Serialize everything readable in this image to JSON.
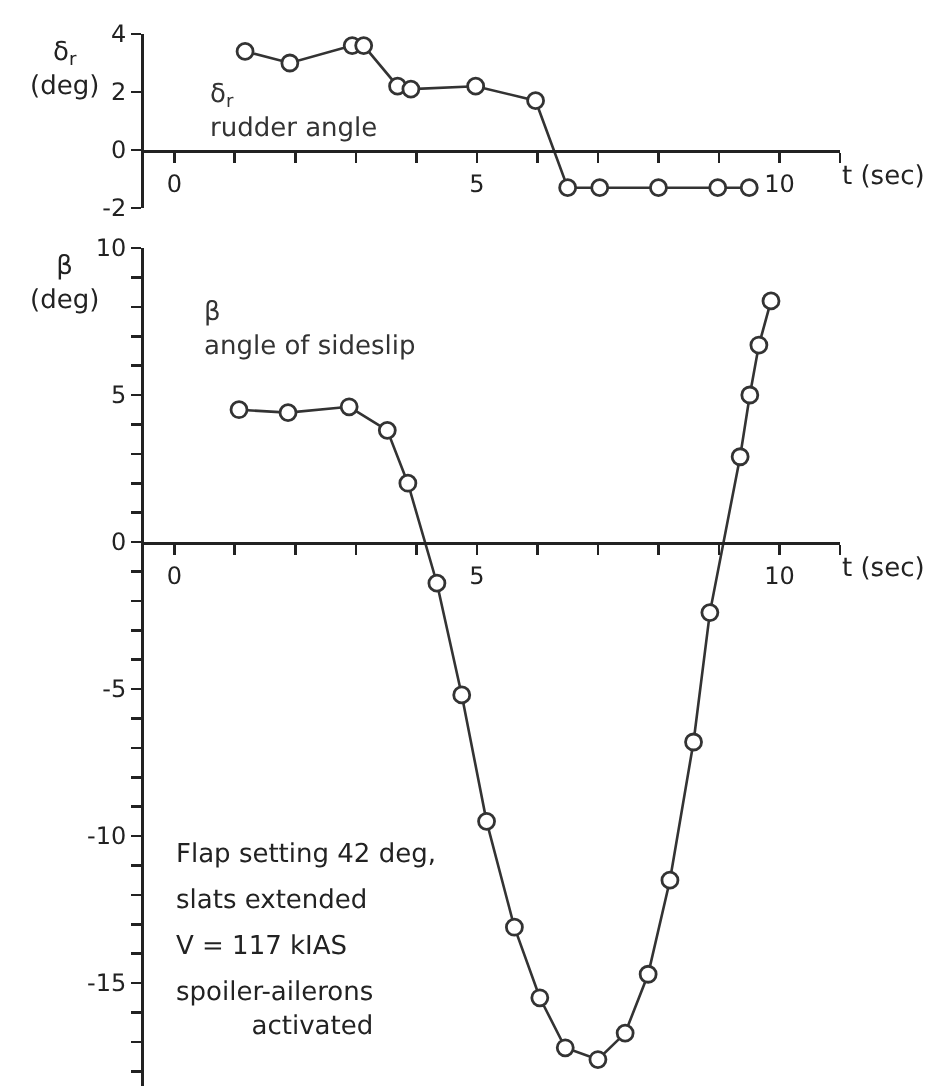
{
  "chart_data": [
    {
      "type": "line",
      "xlabel": "t (sec)",
      "ylabel": "δ$_{r}$ (deg)",
      "x": [
        1.17,
        1.91,
        2.94,
        3.13,
        3.69,
        3.91,
        4.98,
        5.97,
        6.5,
        7.03,
        8.0,
        8.98,
        9.5
      ],
      "series": [
        {
          "name": "δ$_{r}$ rudder angle",
          "color": "#333333",
          "values": [
            3.4,
            3.0,
            3.6,
            3.6,
            2.2,
            2.1,
            2.2,
            1.7,
            -1.3,
            -1.3,
            -1.3,
            -1.3,
            -1.3
          ]
        }
      ],
      "xlim": [
        -0.5,
        11
      ],
      "xticks": [
        0,
        {
          "value": 1,
          "label": null
        },
        {
          "value": 2,
          "label": null
        },
        {
          "value": 3,
          "label": null
        },
        {
          "value": 4,
          "label": null
        },
        5,
        {
          "value": 6,
          "label": null
        },
        {
          "value": 7,
          "label": null
        },
        {
          "value": 8,
          "label": null
        },
        {
          "value": 9,
          "label": null
        },
        10,
        {
          "value": 11,
          "label": null
        }
      ],
      "ylim": [
        -2,
        4
      ],
      "yticks": [
        -2,
        0,
        2,
        4
      ],
      "grid": false,
      "marker": "circle",
      "line_style": "solid"
    },
    {
      "type": "line",
      "xlabel": "t (sec)",
      "ylabel": "β (deg)",
      "x": [
        1.07,
        1.88,
        2.89,
        3.52,
        3.86,
        4.34,
        4.75,
        5.16,
        5.62,
        6.04,
        6.46,
        7.0,
        7.45,
        7.83,
        8.19,
        8.58,
        8.85,
        9.35,
        9.51,
        9.66,
        9.86
      ],
      "series": [
        {
          "name": "β angle of sideslip",
          "color": "#333333",
          "values": [
            4.5,
            4.4,
            4.6,
            3.8,
            2.0,
            -1.4,
            -5.2,
            -9.5,
            -13.1,
            -15.5,
            -17.2,
            -17.6,
            -16.7,
            -14.7,
            -11.5,
            -6.8,
            -2.4,
            2.9,
            5.0,
            6.7,
            8.2
          ]
        }
      ],
      "xlim": [
        -0.5,
        11
      ],
      "xticks": [
        0,
        {
          "value": 1,
          "label": null
        },
        {
          "value": 2,
          "label": null
        },
        {
          "value": 3,
          "label": null
        },
        {
          "value": 4,
          "label": null
        },
        5,
        {
          "value": 6,
          "label": null
        },
        {
          "value": 7,
          "label": null
        },
        {
          "value": 8,
          "label": null
        },
        {
          "value": 9,
          "label": null
        },
        10,
        {
          "value": 11,
          "label": null
        }
      ],
      "ylim": [
        -18.5,
        10
      ],
      "yticks": [
        {
          "value": -18,
          "label": null
        },
        {
          "value": -17,
          "label": null
        },
        {
          "value": -16,
          "label": null
        },
        -15,
        {
          "value": -14,
          "label": null
        },
        {
          "value": -13,
          "label": null
        },
        {
          "value": -12,
          "label": null
        },
        {
          "value": -11,
          "label": null
        },
        -10,
        {
          "value": -9,
          "label": null
        },
        {
          "value": -8,
          "label": null
        },
        {
          "value": -7,
          "label": null
        },
        {
          "value": -6,
          "label": null
        },
        -5,
        {
          "value": -4,
          "label": null
        },
        {
          "value": -3,
          "label": null
        },
        {
          "value": -2,
          "label": null
        },
        {
          "value": -1,
          "label": null
        },
        0,
        {
          "value": 1,
          "label": null
        },
        {
          "value": 2,
          "label": null
        },
        {
          "value": 3,
          "label": null
        },
        {
          "value": 4,
          "label": null
        },
        5,
        {
          "value": 6,
          "label": null
        },
        {
          "value": 7,
          "label": null
        },
        {
          "value": 8,
          "label": null
        },
        {
          "value": 9,
          "label": null
        },
        10
      ],
      "grid": false,
      "marker": "circle",
      "line_style": "solid",
      "annotations": [
        "Flap setting 42 deg,",
        "slats extended",
        "V = 117 kIAS",
        "spoiler-ailerons activated"
      ]
    }
  ]
}
